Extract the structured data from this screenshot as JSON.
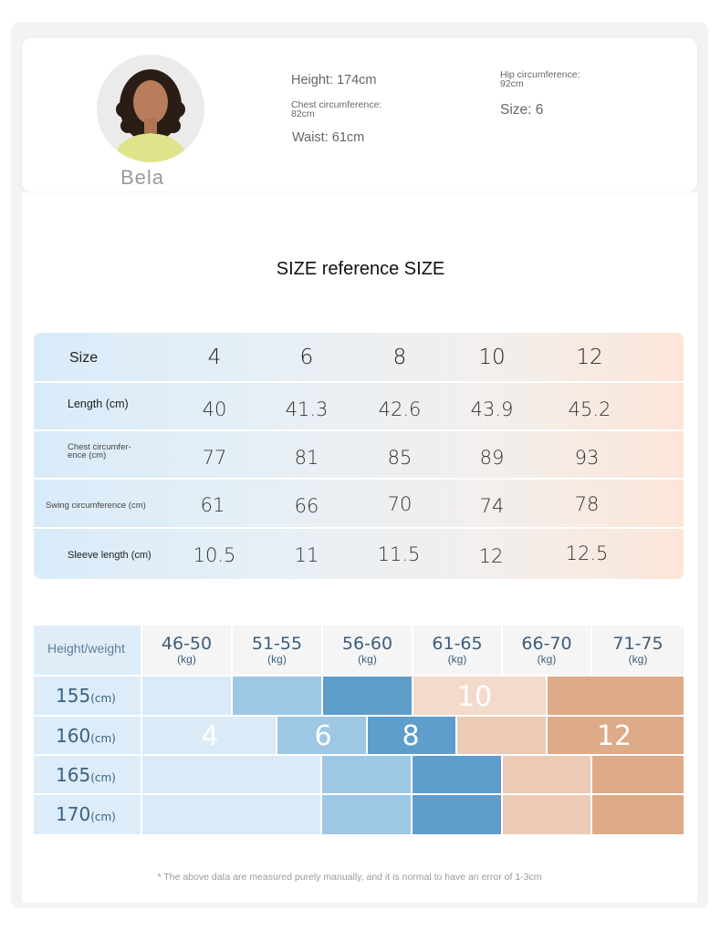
{
  "model": {
    "name": "Bela",
    "height": "Height: 174cm",
    "chest": [
      "Chest circumference:",
      "82cm"
    ],
    "waist": "Waist: 61cm",
    "hip": [
      "Hip circumference:",
      "92cm"
    ],
    "size": "Size: 6"
  },
  "title": "SIZE reference SIZE",
  "size_table": {
    "header_label": "Size",
    "sizes": [
      "4",
      "6",
      "8",
      "10",
      "12"
    ],
    "rows": [
      {
        "label": "Length (cm)",
        "values": [
          "40",
          "41.3",
          "42.6",
          "43.9",
          "45.2"
        ]
      },
      {
        "label": [
          "Chest circumfer-",
          "ence (cm)"
        ],
        "values": [
          "77",
          "81",
          "85",
          "89",
          "93"
        ]
      },
      {
        "label": "Swing circumference (cm)",
        "values": [
          "61",
          "66",
          "70",
          "74",
          "78"
        ]
      },
      {
        "label": "Sleeve length (cm)",
        "values": [
          "10.5",
          "11",
          "11.5",
          "12",
          "12.5"
        ]
      }
    ]
  },
  "hw_chart": {
    "corner_label": "Height/weight",
    "weight_ranges": [
      "46-50",
      "51-55",
      "56-60",
      "61-65",
      "66-70",
      "71-75"
    ],
    "weight_unit": "(kg)",
    "heights": [
      "155",
      "160",
      "165",
      "170"
    ],
    "height_unit": "(cm)",
    "size_labels": [
      "4",
      "6",
      "8",
      "10",
      "12"
    ],
    "colors": {
      "size_4": "#dbeaf7",
      "size_6": "#9ec7e4",
      "size_8": "#5f9dcb",
      "size_10": "#ebcbb6",
      "size_12": "#ddab87",
      "size_10_light": "#f3dacb"
    }
  },
  "footnote": "* The above data are measured purely manually, and it is normal to have an error of 1-3cm"
}
